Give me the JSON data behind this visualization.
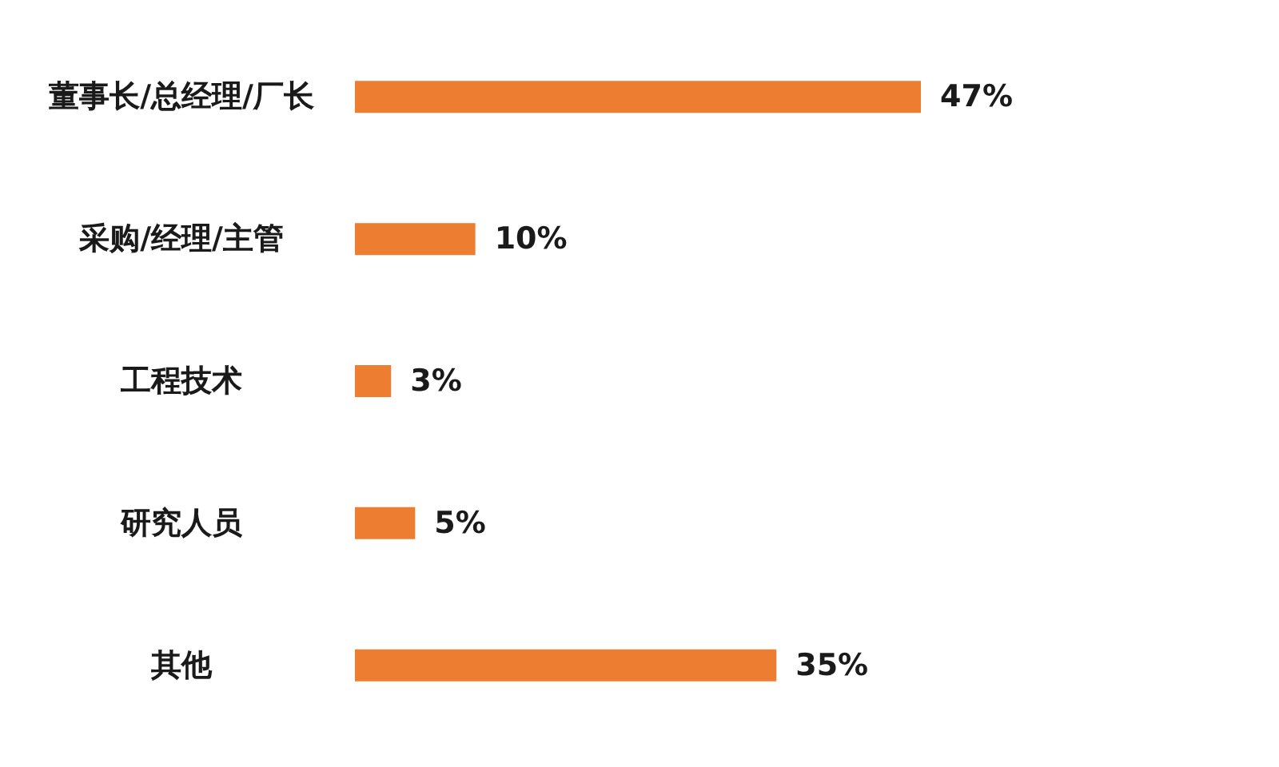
{
  "chart_data": {
    "type": "bar",
    "orientation": "horizontal",
    "categories": [
      "董事长/总经理/厂长",
      "采购/经理/主管",
      "工程技术",
      "研究人员",
      "其他"
    ],
    "values": [
      47,
      10,
      3,
      5,
      35
    ],
    "value_labels": [
      "47%",
      "10%",
      "3%",
      "5%",
      "35%"
    ],
    "color": "#ed7d31",
    "grid": false
  }
}
